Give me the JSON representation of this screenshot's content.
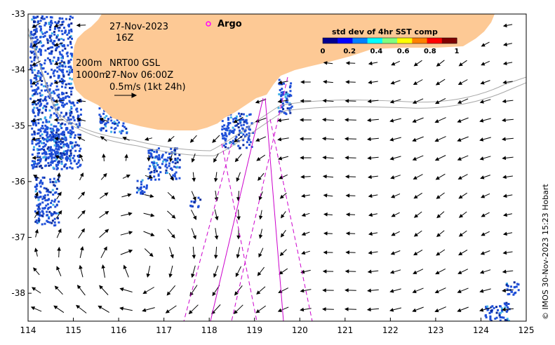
{
  "map": {
    "date_line": "27-Nov-2023",
    "hour_line": "16Z",
    "contour_label": "200m",
    "product_label": "NRT00 GSL",
    "contour2_label": "1000m",
    "vector_time_label": "27-Nov 06:00Z",
    "scale_label": "0.5m/s (1kt 24h)",
    "argo_label": "Argo",
    "credit": "© IMOS 30-Nov-2023 15:23 Hobart",
    "lon_range": [
      114,
      125
    ],
    "lat_range": [
      -38.5,
      -33
    ],
    "x_ticks": [
      "114",
      "115",
      "116",
      "117",
      "118",
      "119",
      "120",
      "121",
      "122",
      "123",
      "124",
      "125"
    ],
    "y_ticks": [
      "-33",
      "-34",
      "-35",
      "-36",
      "-37",
      "-38"
    ],
    "land_color": "#fdc995",
    "argo_color": "#ff00ff",
    "track_color": "#cc00cc",
    "colorbar": {
      "title": "std dev of 4hr SST comp",
      "ticks": [
        "0",
        "0.2",
        "0.4",
        "0.6",
        "0.8",
        "1"
      ],
      "range": [
        0,
        1
      ],
      "colors": [
        "#00008f",
        "#0000ff",
        "#0080ff",
        "#00ffff",
        "#80ff80",
        "#ffff00",
        "#ff8000",
        "#ff0000",
        "#800000"
      ]
    }
  }
}
